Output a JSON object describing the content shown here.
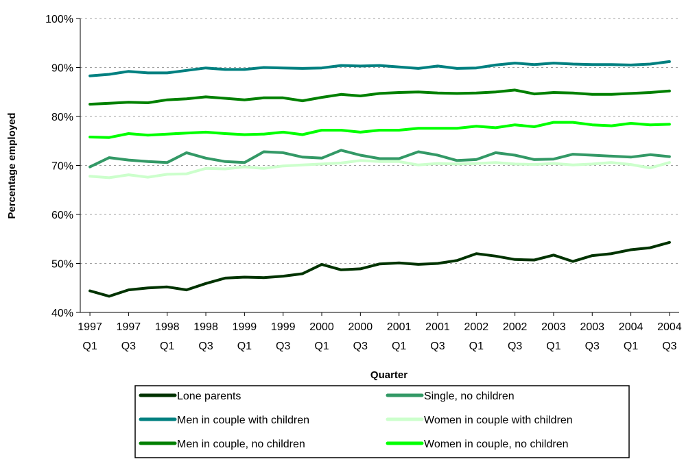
{
  "chart_data": {
    "type": "line",
    "title": "",
    "xlabel": "Quarter",
    "ylabel": "Percentage employed",
    "ylim": [
      40,
      100
    ],
    "y_ticks": [
      "40%",
      "50%",
      "60%",
      "70%",
      "80%",
      "90%",
      "100%"
    ],
    "grid": "horizontal dashed",
    "legend_position": "bottom",
    "x_tick_labels": [
      [
        "1997",
        "Q1"
      ],
      [
        "1997",
        "Q3"
      ],
      [
        "1998",
        "Q1"
      ],
      [
        "1998",
        "Q3"
      ],
      [
        "1999",
        "Q1"
      ],
      [
        "1999",
        "Q3"
      ],
      [
        "2000",
        "Q1"
      ],
      [
        "2000",
        "Q3"
      ],
      [
        "2001",
        "Q1"
      ],
      [
        "2001",
        "Q3"
      ],
      [
        "2002",
        "Q1"
      ],
      [
        "2002",
        "Q3"
      ],
      [
        "2003",
        "Q1"
      ],
      [
        "2003",
        "Q3"
      ],
      [
        "2004",
        "Q1"
      ],
      [
        "2004",
        "Q3"
      ]
    ],
    "x": [
      "1997 Q1",
      "1997 Q2",
      "1997 Q3",
      "1997 Q4",
      "1998 Q1",
      "1998 Q2",
      "1998 Q3",
      "1998 Q4",
      "1999 Q1",
      "1999 Q2",
      "1999 Q3",
      "1999 Q4",
      "2000 Q1",
      "2000 Q2",
      "2000 Q3",
      "2000 Q4",
      "2001 Q1",
      "2001 Q2",
      "2001 Q3",
      "2001 Q4",
      "2002 Q1",
      "2002 Q2",
      "2002 Q3",
      "2002 Q4",
      "2003 Q1",
      "2003 Q2",
      "2003 Q3",
      "2003 Q4",
      "2004 Q1",
      "2004 Q2",
      "2004 Q3"
    ],
    "series": [
      {
        "name": "Lone parents",
        "color": "#003300",
        "values": [
          44.4,
          43.3,
          44.6,
          45.0,
          45.2,
          44.6,
          45.9,
          47.0,
          47.2,
          47.1,
          47.4,
          47.9,
          49.8,
          48.7,
          48.9,
          49.9,
          50.1,
          49.8,
          50.0,
          50.6,
          52.0,
          51.5,
          50.8,
          50.7,
          51.7,
          50.4,
          51.6,
          52.0,
          52.8,
          53.2,
          54.3
        ]
      },
      {
        "name": "Single, no children",
        "color": "#339966",
        "values": [
          69.7,
          71.6,
          71.1,
          70.8,
          70.6,
          72.6,
          71.5,
          70.8,
          70.6,
          72.8,
          72.6,
          71.7,
          71.5,
          73.1,
          72.1,
          71.4,
          71.4,
          72.8,
          72.1,
          71.0,
          71.2,
          72.6,
          72.1,
          71.2,
          71.3,
          72.3,
          72.1,
          71.9,
          71.7,
          72.2,
          71.8
        ]
      },
      {
        "name": "Men in couple with children",
        "color": "#008080",
        "values": [
          88.3,
          88.6,
          89.2,
          88.9,
          88.9,
          89.4,
          89.9,
          89.6,
          89.6,
          90.0,
          89.9,
          89.8,
          89.9,
          90.4,
          90.3,
          90.4,
          90.1,
          89.8,
          90.3,
          89.8,
          89.9,
          90.5,
          90.9,
          90.6,
          90.9,
          90.7,
          90.6,
          90.6,
          90.5,
          90.7,
          91.2
        ]
      },
      {
        "name": "Women in couple with children",
        "color": "#CCFFCC",
        "values": [
          67.8,
          67.5,
          68.1,
          67.6,
          68.2,
          68.3,
          69.4,
          69.3,
          69.7,
          69.4,
          69.9,
          70.1,
          70.3,
          70.5,
          71.0,
          70.8,
          70.8,
          70.1,
          70.4,
          70.3,
          70.4,
          70.6,
          70.3,
          70.2,
          70.4,
          70.1,
          70.3,
          70.6,
          70.2,
          69.5,
          70.6
        ]
      },
      {
        "name": "Men in couple, no children",
        "color": "#008000",
        "values": [
          82.5,
          82.7,
          82.9,
          82.8,
          83.4,
          83.6,
          84.0,
          83.7,
          83.4,
          83.8,
          83.8,
          83.2,
          83.9,
          84.5,
          84.2,
          84.7,
          84.9,
          85.0,
          84.8,
          84.7,
          84.8,
          85.0,
          85.4,
          84.6,
          84.9,
          84.8,
          84.5,
          84.5,
          84.7,
          84.9,
          85.2
        ]
      },
      {
        "name": "Women in couple, no children",
        "color": "#00FF00",
        "values": [
          75.8,
          75.7,
          76.5,
          76.2,
          76.4,
          76.6,
          76.8,
          76.5,
          76.3,
          76.4,
          76.8,
          76.3,
          77.2,
          77.2,
          76.8,
          77.2,
          77.2,
          77.6,
          77.6,
          77.6,
          78.0,
          77.7,
          78.3,
          77.9,
          78.8,
          78.8,
          78.3,
          78.1,
          78.6,
          78.3,
          78.4
        ]
      }
    ]
  }
}
